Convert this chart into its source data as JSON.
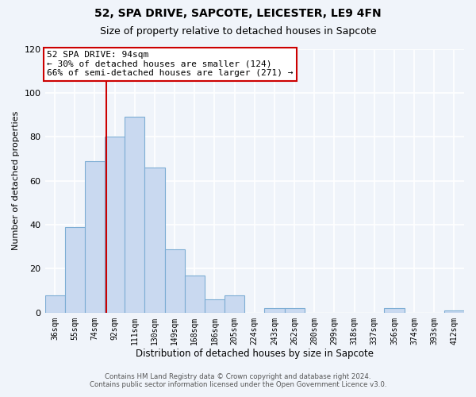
{
  "title": "52, SPA DRIVE, SAPCOTE, LEICESTER, LE9 4FN",
  "subtitle": "Size of property relative to detached houses in Sapcote",
  "xlabel": "Distribution of detached houses by size in Sapcote",
  "ylabel": "Number of detached properties",
  "bar_labels": [
    "36sqm",
    "55sqm",
    "74sqm",
    "92sqm",
    "111sqm",
    "130sqm",
    "149sqm",
    "168sqm",
    "186sqm",
    "205sqm",
    "224sqm",
    "243sqm",
    "262sqm",
    "280sqm",
    "299sqm",
    "318sqm",
    "337sqm",
    "356sqm",
    "374sqm",
    "393sqm",
    "412sqm"
  ],
  "bar_values": [
    8,
    39,
    69,
    80,
    89,
    66,
    29,
    17,
    6,
    8,
    0,
    2,
    2,
    0,
    0,
    0,
    0,
    2,
    0,
    0,
    1
  ],
  "bar_color": "#c9d9f0",
  "bar_edge_color": "#7dadd4",
  "vline_color": "#cc0000",
  "vline_x": 2.575,
  "ylim": [
    0,
    120
  ],
  "yticks": [
    0,
    20,
    40,
    60,
    80,
    100,
    120
  ],
  "annotation_text": "52 SPA DRIVE: 94sqm\n← 30% of detached houses are smaller (124)\n66% of semi-detached houses are larger (271) →",
  "annotation_box_color": "#ffffff",
  "annotation_box_edge": "#cc0000",
  "footer_line1": "Contains HM Land Registry data © Crown copyright and database right 2024.",
  "footer_line2": "Contains public sector information licensed under the Open Government Licence v3.0.",
  "bg_color": "#f0f4fa",
  "grid_color": "#d0d8e8"
}
